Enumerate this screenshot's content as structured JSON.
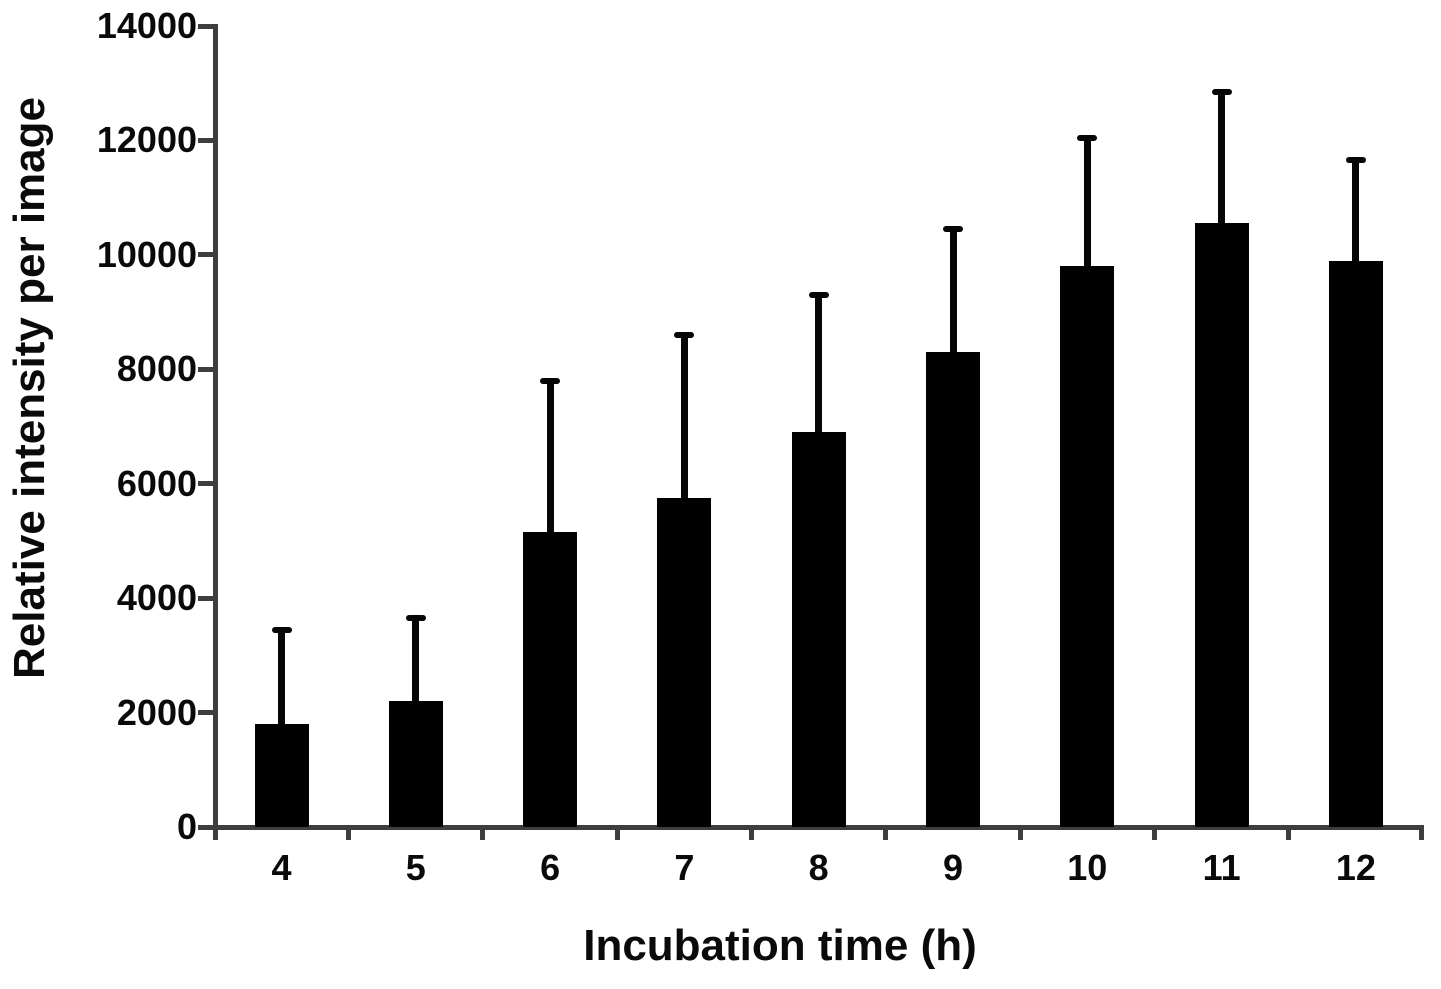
{
  "chart_data": {
    "type": "bar",
    "title": "",
    "xlabel": "Incubation time (h)",
    "ylabel": "Relative intensity per image",
    "categories": [
      "4",
      "5",
      "6",
      "7",
      "8",
      "9",
      "10",
      "11",
      "12"
    ],
    "values": [
      1800,
      2200,
      5150,
      5750,
      6900,
      8300,
      9800,
      10550,
      9900
    ],
    "errors_upper": [
      1650,
      1450,
      2650,
      2850,
      2400,
      2150,
      2250,
      2300,
      1750
    ],
    "y_ticks": [
      0,
      2000,
      4000,
      6000,
      8000,
      10000,
      12000,
      14000
    ],
    "y_tick_labels": [
      "0",
      "2000",
      "4000",
      "6000",
      "8000",
      "10000",
      "12000",
      "14000"
    ],
    "ylim": [
      0,
      14000
    ],
    "bar_color": "#010101",
    "axis_color": "#3e3e3e",
    "text_color": "#0a0a0a",
    "background_color": "#ffffff",
    "grid": false,
    "legend": false,
    "error_bar_style": "upper-only-with-caps"
  }
}
